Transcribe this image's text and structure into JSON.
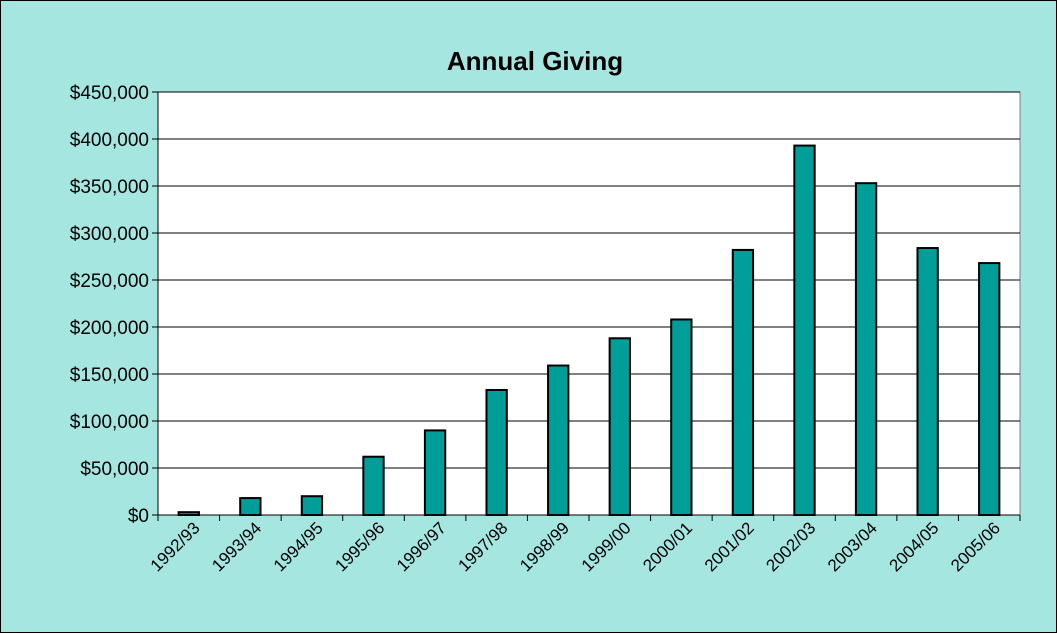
{
  "chart_data": {
    "type": "bar",
    "title": "Annual Giving",
    "xlabel": "",
    "ylabel": "",
    "categories": [
      "1992/93",
      "1993/94",
      "1994/95",
      "1995/96",
      "1996/97",
      "1997/98",
      "1998/99",
      "1999/00",
      "2000/01",
      "2001/02",
      "2002/03",
      "2003/04",
      "2004/05",
      "2005/06"
    ],
    "values": [
      3000,
      18000,
      20000,
      62000,
      90000,
      133000,
      159000,
      188000,
      208000,
      282000,
      393000,
      353000,
      284000,
      268000
    ],
    "ylim": [
      0,
      450000
    ],
    "yticks": [
      0,
      50000,
      100000,
      150000,
      200000,
      250000,
      300000,
      350000,
      400000,
      450000
    ],
    "ytick_labels": [
      "$0",
      "$50,000",
      "$100,000",
      "$150,000",
      "$200,000",
      "$250,000",
      "$300,000",
      "$350,000",
      "$400,000",
      "$450,000"
    ],
    "grid": true,
    "legend": "none",
    "colors": {
      "bar": "#009e99",
      "background": "#a6e6e1",
      "plot_area": "#ffffff"
    }
  }
}
